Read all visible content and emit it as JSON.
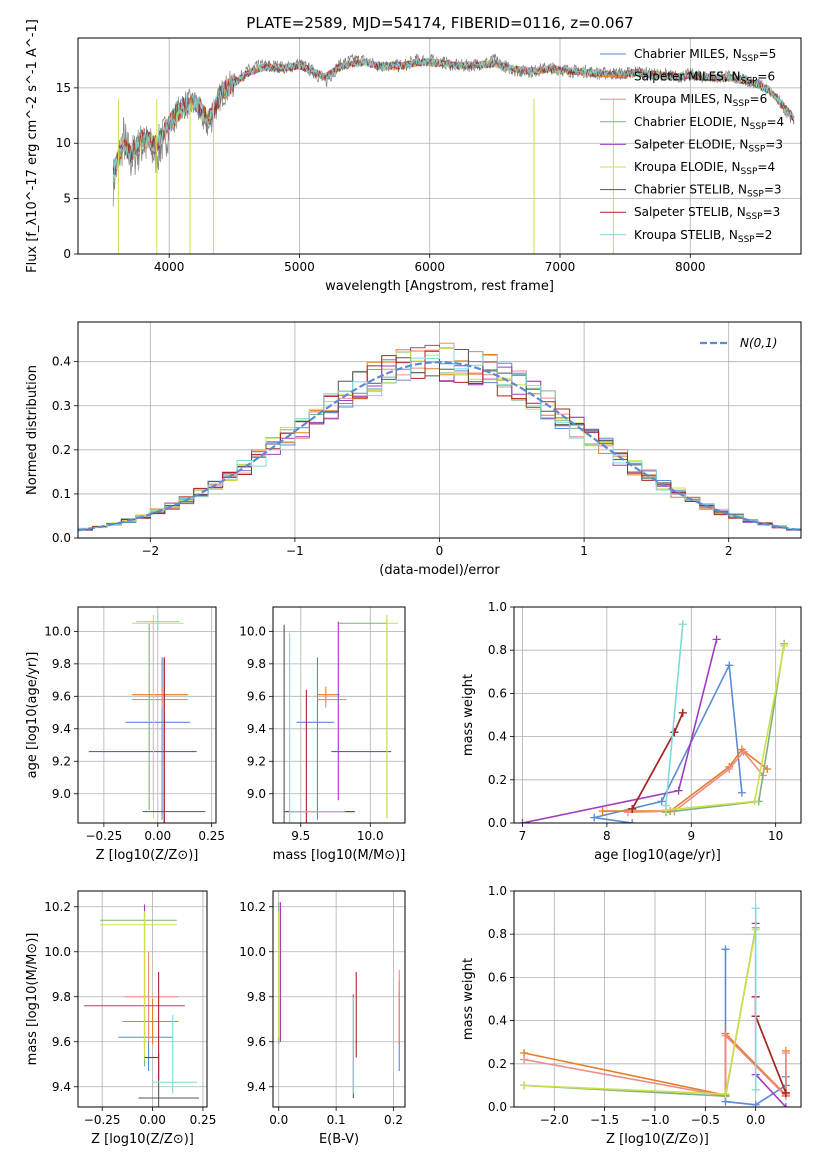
{
  "figure": {
    "title": "PLATE=2589, MJD=54174, FIBERID=0116, z=0.067"
  },
  "series_styles": [
    {
      "name": "Chabrier MILES",
      "n": "5",
      "color": "#5b8bd6"
    },
    {
      "name": "Salpeter MILES",
      "n": "6",
      "color": "#e67e22"
    },
    {
      "name": "Kroupa MILES",
      "n": "6",
      "color": "#f08a8a"
    },
    {
      "name": "Chabrier ELODIE",
      "n": "4",
      "color": "#7fb27f"
    },
    {
      "name": "Salpeter ELODIE",
      "n": "3",
      "color": "#a03cc0"
    },
    {
      "name": "Kroupa ELODIE",
      "n": "4",
      "color": "#cfe04a"
    },
    {
      "name": "Chabrier STELIB",
      "n": "3",
      "color": "#555555"
    },
    {
      "name": "Salpeter STELIB",
      "n": "3",
      "color": "#b22222"
    },
    {
      "name": "Kroupa STELIB",
      "n": "2",
      "color": "#7fdada"
    }
  ],
  "chart_data": [
    {
      "id": "spectrum",
      "type": "line",
      "xlabel": "wavelength [Angstrom, rest frame]",
      "ylabel": "Flux [f_λ10^-17 erg cm^-2 s^-1 A^-1]",
      "xlim": [
        3300,
        8850
      ],
      "ylim": [
        0,
        19.5
      ],
      "xticks": [
        4000,
        5000,
        6000,
        7000,
        8000
      ],
      "yticks": [
        0,
        5,
        10,
        15
      ],
      "legend": "upper-right",
      "data_color": "#808080",
      "x": [
        3570,
        3650,
        3700,
        3800,
        3900,
        4000,
        4100,
        4200,
        4300,
        4400,
        4500,
        4600,
        4700,
        4800,
        4900,
        5000,
        5100,
        5200,
        5300,
        5400,
        5500,
        5600,
        5700,
        5800,
        5900,
        6000,
        6100,
        6200,
        6300,
        6400,
        6500,
        6600,
        6700,
        6800,
        6900,
        7000,
        7100,
        7200,
        7300,
        7400,
        7500,
        7600,
        7700,
        7800,
        7900,
        8000,
        8100,
        8200,
        8300,
        8400,
        8500,
        8600,
        8700,
        8800
      ],
      "data_flux": [
        6.5,
        10.5,
        8.5,
        10,
        9,
        11.5,
        13.5,
        13.5,
        11.5,
        14.5,
        15.5,
        16.5,
        17,
        17,
        16.8,
        17.2,
        16.5,
        15.5,
        17,
        17.5,
        17.5,
        17,
        17,
        17,
        17.5,
        17.5,
        17.3,
        17,
        17,
        17.2,
        17.5,
        16.8,
        16.5,
        16.5,
        16.8,
        16.7,
        16.5,
        16.5,
        16.3,
        16.3,
        16.3,
        16.5,
        16.2,
        16.2,
        16,
        16.2,
        16,
        16,
        16,
        15.8,
        15.5,
        14.8,
        13.5,
        12
      ],
      "model_flux": [
        7.2,
        10.2,
        9,
        10.5,
        9.8,
        11.8,
        13.2,
        13.8,
        12,
        14.5,
        15.5,
        16.3,
        16.8,
        16.8,
        16.8,
        17,
        16.5,
        16,
        16.8,
        17.2,
        17.3,
        17,
        17,
        17,
        17.3,
        17.3,
        17.2,
        17,
        17,
        17.1,
        17.2,
        16.8,
        16.6,
        16.5,
        16.7,
        16.6,
        16.5,
        16.4,
        16.3,
        16.2,
        16.2,
        16.4,
        16.2,
        16.1,
        16,
        16.1,
        16,
        15.9,
        15.9,
        15.7,
        15.4,
        14.8,
        13.6,
        12.2
      ],
      "series_n_ssp": [
        "5",
        "6",
        "6",
        "4",
        "3",
        "4",
        "3",
        "3",
        "2"
      ]
    },
    {
      "id": "residuals",
      "type": "histogram",
      "xlabel": "(data-model)/error",
      "ylabel": "Normed distribution",
      "xlim": [
        -2.5,
        2.5
      ],
      "ylim": [
        0,
        0.49
      ],
      "xticks": [
        -2,
        -1,
        0,
        1,
        2
      ],
      "yticks": [
        0.0,
        0.1,
        0.2,
        0.3,
        0.4
      ],
      "legend": "upper-right",
      "reference_label": "N(0,1)",
      "reference_color": "#5b8bd6",
      "bin_width": 0.1
    },
    {
      "id": "age_vs_Z",
      "type": "errorbar",
      "xlabel": "Z [log10(Z/Z⊙)]",
      "ylabel": "age  [log10(age/yr)]",
      "xlim": [
        -0.37,
        0.27
      ],
      "ylim": [
        8.82,
        10.15
      ],
      "xticks": [
        -0.25,
        0.0,
        0.25
      ],
      "yticks": [
        9.0,
        9.2,
        9.4,
        9.6,
        9.8,
        10.0
      ],
      "points": [
        {
          "x": 0.02,
          "y": 9.44,
          "xerr": [
            0.17,
            0.13
          ],
          "yerr": [
            0.6,
            0.4
          ],
          "series": 0
        },
        {
          "x": 0.02,
          "y": 9.61,
          "xerr": [
            0.14,
            0.12
          ],
          "yerr": [
            0.05,
            0.05
          ],
          "series": 1
        },
        {
          "x": 0.02,
          "y": 9.58,
          "xerr": [
            0.14,
            0.12
          ],
          "yerr": [
            0.05,
            0.05
          ],
          "series": 2
        },
        {
          "x": -0.04,
          "y": 9.85,
          "xerr": [
            0.0,
            0.0
          ],
          "yerr": [
            0.95,
            0.2
          ],
          "series": 3
        },
        {
          "x": -0.02,
          "y": 9.26,
          "xerr": [
            0.3,
            0.2
          ],
          "yerr": [
            0.3,
            0.8
          ],
          "series": 4
        },
        {
          "x": -0.02,
          "y": 10.05,
          "xerr": [
            0.1,
            0.14
          ],
          "yerr": [
            1.2,
            0.05
          ],
          "series": 5
        },
        {
          "x": 0.03,
          "y": 8.89,
          "xerr": [
            0.1,
            0.19
          ],
          "yerr": [
            0.1,
            0.95
          ],
          "series": 6
        },
        {
          "x": 0.03,
          "y": 8.89,
          "xerr": [
            0.0,
            0.0
          ],
          "yerr": [
            0.1,
            0.95
          ],
          "series": 7
        },
        {
          "x": 0.0,
          "y": 10.06,
          "xerr": [
            0.1,
            0.1
          ],
          "yerr": [
            0.05,
            0.05
          ],
          "series": 8
        }
      ]
    },
    {
      "id": "age_vs_mass",
      "type": "errorbar",
      "xlabel": "mass [log10(M/M⊙)]",
      "ylabel": "",
      "xlim": [
        9.3,
        10.25
      ],
      "ylim": [
        8.82,
        10.15
      ],
      "xticks": [
        9.5,
        10.0
      ],
      "yticks": [
        9.0,
        9.2,
        9.4,
        9.6,
        9.8,
        10.0
      ],
      "points": [
        {
          "x": 9.62,
          "y": 9.44,
          "xerr": [
            0.15,
            0.12
          ],
          "yerr": [
            0.6,
            0.4
          ],
          "series": 0
        },
        {
          "x": 9.68,
          "y": 9.61,
          "xerr": [
            0.06,
            0.1
          ],
          "yerr": [
            0.05,
            0.05
          ],
          "series": 1
        },
        {
          "x": 9.68,
          "y": 9.58,
          "xerr": [
            0.06,
            0.15
          ],
          "yerr": [
            0.05,
            0.05
          ],
          "series": 2
        },
        {
          "x": 10.12,
          "y": 10.05,
          "xerr": [
            0.35,
            0.0
          ],
          "yerr": [
            1.2,
            0.05
          ],
          "series": 3
        },
        {
          "x": 9.77,
          "y": 9.26,
          "xerr": [
            0.05,
            0.38
          ],
          "yerr": [
            0.3,
            0.8
          ],
          "series": 4
        },
        {
          "x": 10.12,
          "y": 10.05,
          "xerr": [
            0.0,
            0.08
          ],
          "yerr": [
            1.2,
            0.05
          ],
          "series": 5
        },
        {
          "x": 9.38,
          "y": 8.89,
          "xerr": [
            0.0,
            0.5
          ],
          "yerr": [
            0.1,
            1.15
          ],
          "series": 6
        },
        {
          "x": 9.54,
          "y": 8.89,
          "xerr": [
            0.15,
            0.35
          ],
          "yerr": [
            0.1,
            0.75
          ],
          "series": 7
        },
        {
          "x": 9.42,
          "y": 8.89,
          "xerr": [
            0.0,
            0.4
          ],
          "yerr": [
            0.1,
            1.1
          ],
          "series": 8
        }
      ]
    },
    {
      "id": "weight_vs_age",
      "type": "line",
      "xlabel": "age  [log10(age/yr)]",
      "ylabel": "mass weight",
      "xlim": [
        6.9,
        10.3
      ],
      "ylim": [
        0,
        1.0
      ],
      "xticks": [
        7,
        8,
        9,
        10
      ],
      "yticks": [
        0.0,
        0.2,
        0.4,
        0.6,
        0.8,
        1.0
      ],
      "series": [
        {
          "series": 0,
          "x": [
            8.3,
            7.85,
            8.65,
            9.45,
            9.6
          ],
          "y": [
            0.0,
            0.025,
            0.1,
            0.73,
            0.14
          ]
        },
        {
          "series": 1,
          "x": [
            7.95,
            8.75,
            9.45,
            9.6,
            9.9
          ],
          "y": [
            0.055,
            0.055,
            0.26,
            0.34,
            0.25
          ]
        },
        {
          "series": 2,
          "x": [
            8.25,
            8.8,
            9.45,
            9.62,
            9.85
          ],
          "y": [
            0.05,
            0.055,
            0.25,
            0.33,
            0.22
          ]
        },
        {
          "series": 3,
          "x": [
            8.7,
            9.8,
            10.1
          ],
          "y": [
            0.05,
            0.1,
            0.83
          ]
        },
        {
          "series": 4,
          "x": [
            7.0,
            8.85,
            9.3
          ],
          "y": [
            0.0,
            0.15,
            0.85
          ]
        },
        {
          "series": 5,
          "x": [
            8.7,
            9.75,
            10.1
          ],
          "y": [
            0.06,
            0.1,
            0.82
          ]
        },
        {
          "series": 6,
          "x": [
            8.3,
            8.8,
            8.9
          ],
          "y": [
            0.065,
            0.42,
            0.51
          ]
        },
        {
          "series": 7,
          "x": [
            8.3,
            8.8,
            8.9
          ],
          "y": [
            0.065,
            0.42,
            0.51
          ]
        },
        {
          "series": 8,
          "x": [
            8.7,
            8.9
          ],
          "y": [
            0.08,
            0.92
          ]
        }
      ]
    },
    {
      "id": "mass_vs_Z",
      "type": "errorbar",
      "xlabel": "Z [log10(Z/Z⊙)]",
      "ylabel": "mass [log10(M/M⊙)]",
      "xlim": [
        -0.37,
        0.27
      ],
      "ylim": [
        9.31,
        10.27
      ],
      "xticks": [
        -0.25,
        0.0,
        0.25
      ],
      "yticks": [
        9.4,
        9.6,
        9.8,
        10.0,
        10.2
      ],
      "points": [
        {
          "x": -0.02,
          "y": 9.62,
          "xerr": [
            0.15,
            0.12
          ],
          "yerr": [
            0.15,
            0.2
          ],
          "series": 0
        },
        {
          "x": 0.0,
          "y": 9.69,
          "xerr": [
            0.15,
            0.13
          ],
          "yerr": [
            0.1,
            0.1
          ],
          "series": 1
        },
        {
          "x": -0.02,
          "y": 9.8,
          "xerr": [
            0.12,
            0.15
          ],
          "yerr": [
            0.2,
            0.2
          ],
          "series": 2
        },
        {
          "x": -0.04,
          "y": 10.14,
          "xerr": [
            0.22,
            0.16
          ],
          "yerr": [
            0.65,
            0.06
          ],
          "series": 3
        },
        {
          "x": -0.04,
          "y": 9.76,
          "xerr": [
            0.3,
            0.2
          ],
          "yerr": [
            0.2,
            0.45
          ],
          "series": 4
        },
        {
          "x": -0.04,
          "y": 10.12,
          "xerr": [
            0.22,
            0.16
          ],
          "yerr": [
            0.6,
            0.06
          ],
          "series": 5
        },
        {
          "x": 0.03,
          "y": 9.35,
          "xerr": [
            0.1,
            0.2
          ],
          "yerr": [
            0.1,
            0.2
          ],
          "series": 6
        },
        {
          "x": 0.03,
          "y": 9.53,
          "xerr": [
            0.07,
            0.0
          ],
          "yerr": [
            0.1,
            0.38
          ],
          "series": 7
        },
        {
          "x": 0.1,
          "y": 9.42,
          "xerr": [
            0.1,
            0.12
          ],
          "yerr": [
            0.05,
            0.3
          ],
          "series": 8
        }
      ]
    },
    {
      "id": "mass_vs_EBV",
      "type": "errorbar",
      "xlabel": "E(B-V)",
      "ylabel": "",
      "xlim": [
        -0.01,
        0.22
      ],
      "ylim": [
        9.31,
        10.27
      ],
      "xticks": [
        0.0,
        0.1,
        0.2
      ],
      "yticks": [
        9.4,
        9.6,
        9.8,
        10.0,
        10.2
      ],
      "points": [
        {
          "x": 0.21,
          "y": 9.62,
          "xerr": [
            0,
            0
          ],
          "yerr": [
            0.15,
            0.2
          ],
          "series": 0
        },
        {
          "x": 0.21,
          "y": 9.69,
          "xerr": [
            0,
            0
          ],
          "yerr": [
            0.1,
            0.18
          ],
          "series": 1
        },
        {
          "x": 0.21,
          "y": 9.8,
          "xerr": [
            0,
            0
          ],
          "yerr": [
            0.2,
            0.12
          ],
          "series": 2
        },
        {
          "x": 0.0,
          "y": 10.14,
          "xerr": [
            0,
            0
          ],
          "yerr": [
            0.55,
            0.08
          ],
          "series": 3
        },
        {
          "x": 0.003,
          "y": 9.76,
          "xerr": [
            0,
            0
          ],
          "yerr": [
            0.16,
            0.46
          ],
          "series": 4
        },
        {
          "x": 0.0,
          "y": 10.12,
          "xerr": [
            0,
            0
          ],
          "yerr": [
            0.5,
            0.06
          ],
          "series": 5
        },
        {
          "x": 0.13,
          "y": 9.45,
          "xerr": [
            0,
            0
          ],
          "yerr": [
            0.1,
            0.36
          ],
          "series": 6
        },
        {
          "x": 0.135,
          "y": 9.53,
          "xerr": [
            0,
            0
          ],
          "yerr": [
            0.0,
            0.38
          ],
          "series": 7
        },
        {
          "x": 0.13,
          "y": 9.42,
          "xerr": [
            0,
            0
          ],
          "yerr": [
            0.05,
            0.38
          ],
          "series": 8
        }
      ]
    },
    {
      "id": "weight_vs_Z",
      "type": "line",
      "xlabel": "Z [log10(Z/Z⊙)]",
      "ylabel": "mass weight",
      "xlim": [
        -2.4,
        0.45
      ],
      "ylim": [
        0,
        1.0
      ],
      "xticks": [
        -2.0,
        -1.5,
        -1.0,
        -0.5,
        0.0
      ],
      "yticks": [
        0.0,
        0.2,
        0.4,
        0.6,
        0.8,
        1.0
      ],
      "series": [
        {
          "series": 0,
          "x": [
            -0.3,
            -0.3,
            0.0,
            0.3,
            0.3
          ],
          "y": [
            0.73,
            0.025,
            0.01,
            0.1,
            0.14
          ]
        },
        {
          "series": 1,
          "x": [
            -2.3,
            -0.3,
            -0.3,
            0.3,
            0.3
          ],
          "y": [
            0.25,
            0.055,
            0.34,
            0.055,
            0.26
          ]
        },
        {
          "series": 2,
          "x": [
            -2.3,
            -0.3,
            -0.3,
            0.3,
            0.3
          ],
          "y": [
            0.22,
            0.05,
            0.33,
            0.05,
            0.25
          ]
        },
        {
          "series": 3,
          "x": [
            -2.3,
            -0.3,
            0.0
          ],
          "y": [
            0.1,
            0.05,
            0.83
          ]
        },
        {
          "series": 4,
          "x": [
            0.0,
            0.0,
            0.3
          ],
          "y": [
            0.85,
            0.15,
            0.0
          ]
        },
        {
          "series": 5,
          "x": [
            -2.3,
            -0.3,
            0.0
          ],
          "y": [
            0.1,
            0.06,
            0.82
          ]
        },
        {
          "series": 6,
          "x": [
            0.0,
            0.0,
            0.3
          ],
          "y": [
            0.51,
            0.42,
            0.065
          ]
        },
        {
          "series": 7,
          "x": [
            0.0,
            0.0,
            0.3
          ],
          "y": [
            0.51,
            0.42,
            0.065
          ]
        },
        {
          "series": 8,
          "x": [
            0.0,
            0.0
          ],
          "y": [
            0.92,
            0.08
          ]
        }
      ]
    }
  ]
}
